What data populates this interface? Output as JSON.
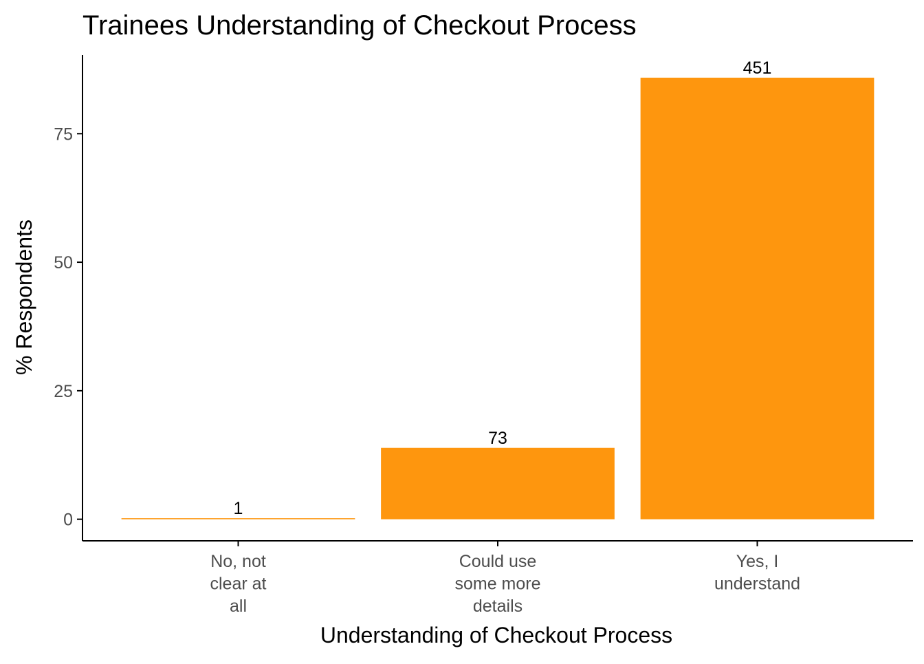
{
  "chart_data": {
    "type": "bar",
    "title": "Trainees Understanding of Checkout Process",
    "xlabel": "Understanding of Checkout Process",
    "ylabel": "% Respondents",
    "categories": [
      [
        "No, not",
        "clear at",
        "all"
      ],
      [
        "Could use",
        "some more",
        "details"
      ],
      [
        "Yes, I",
        "understand"
      ]
    ],
    "values": [
      0.2,
      13.9,
      85.9
    ],
    "data_labels": [
      "1",
      "73",
      "451"
    ],
    "ylim": [
      -4.2,
      90.3
    ],
    "yticks": [
      0,
      25,
      50,
      75
    ],
    "ytick_labels": [
      "0",
      "25",
      "50",
      "75"
    ],
    "grid": false,
    "legend": "none",
    "colors": {
      "bar": "#FE960E",
      "axis": "#000000",
      "tick_text": "#4d4d4d"
    }
  }
}
